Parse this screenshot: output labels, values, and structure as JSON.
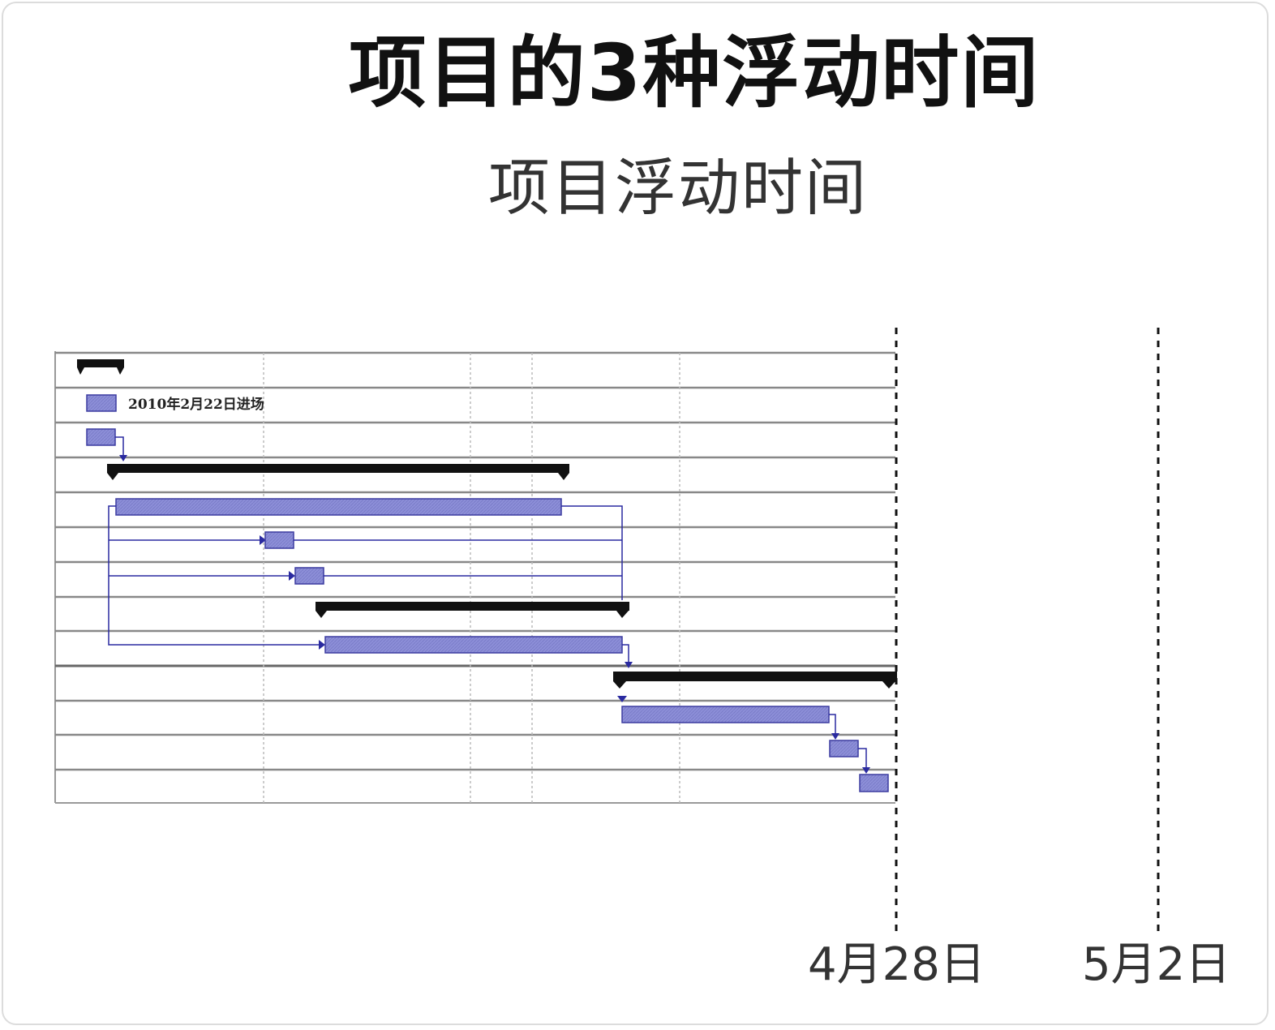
{
  "title": "项目的3种浮动时间",
  "subtitle": "项目浮动时间",
  "gantt": {
    "legend_label": "2010年2月22日进场",
    "date_markers": [
      {
        "label": "4月28日"
      },
      {
        "label": "5月2日"
      }
    ],
    "colors": {
      "task_bar": "#8d8fd8",
      "task_border": "#3c3ca0",
      "summary_bar": "#111111",
      "link": "#2a2aa0",
      "grid": "#999999"
    }
  }
}
